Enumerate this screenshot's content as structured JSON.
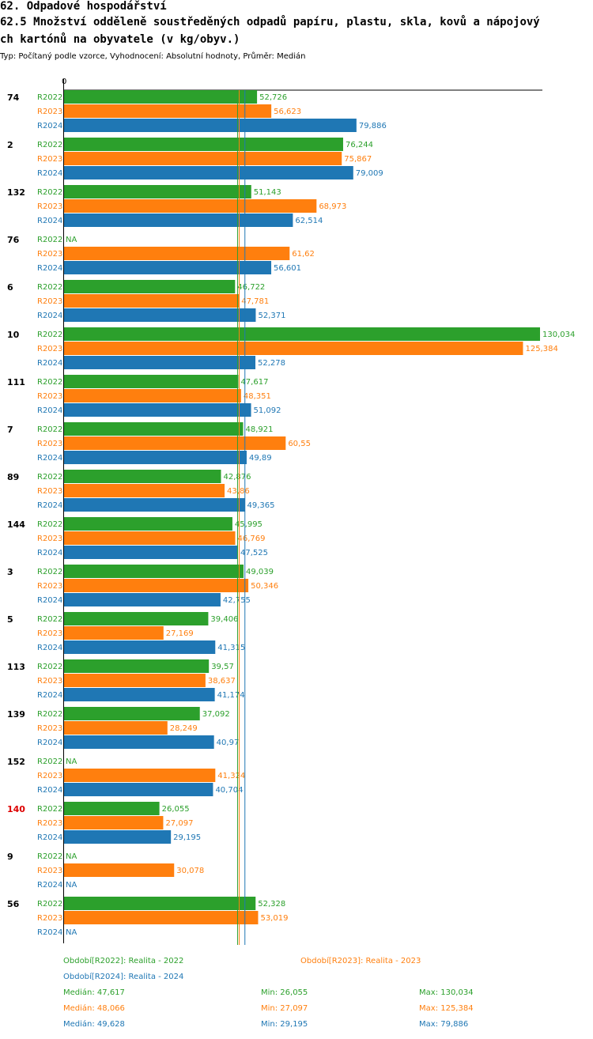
{
  "header": {
    "title1": "62. Odpadové hospodářství",
    "title2": "62.5 Množství odděleně soustředěných odpadů papíru, plastu, skla, kovů a nápojový",
    "title3": "ch kartónů na obyvatele (v kg/obyv.)",
    "subtitle": "Typ: Počítaný podle vzorce, Vyhodnocení: Absolutní hodnoty, Průměr: Medián"
  },
  "colors": {
    "R2022": "#2ca02c",
    "R2023": "#ff7f0e",
    "R2024": "#1f77b4",
    "highlight": "#dd0000",
    "text": "#000000"
  },
  "chart_data": {
    "type": "bar",
    "orientation": "horizontal",
    "title": "62.5 Množství odděleně soustředěných odpadů papíru, plastu, skla, kovů a nápojových kartónů na obyvatele (v kg/obyv.)",
    "xlim": [
      0,
      130.034
    ],
    "x_tick_label": "0",
    "series_names": [
      "R2022",
      "R2023",
      "R2024"
    ],
    "groups": [
      {
        "label": "74",
        "highlight": false,
        "values": [
          52.726,
          56.623,
          79.886
        ],
        "labels": [
          "52,726",
          "56,623",
          "79,886"
        ]
      },
      {
        "label": "2",
        "highlight": false,
        "values": [
          76.244,
          75.867,
          79.009
        ],
        "labels": [
          "76,244",
          "75,867",
          "79,009"
        ]
      },
      {
        "label": "132",
        "highlight": false,
        "values": [
          51.143,
          68.973,
          62.514
        ],
        "labels": [
          "51,143",
          "68,973",
          "62,514"
        ]
      },
      {
        "label": "76",
        "highlight": false,
        "values": [
          null,
          61.62,
          56.601
        ],
        "labels": [
          "NA",
          "61,62",
          "56,601"
        ]
      },
      {
        "label": "6",
        "highlight": false,
        "values": [
          46.722,
          47.781,
          52.371
        ],
        "labels": [
          "46,722",
          "47,781",
          "52,371"
        ]
      },
      {
        "label": "10",
        "highlight": false,
        "values": [
          130.034,
          125.384,
          52.278
        ],
        "labels": [
          "130,034",
          "125,384",
          "52,278"
        ]
      },
      {
        "label": "111",
        "highlight": false,
        "values": [
          47.617,
          48.351,
          51.092
        ],
        "labels": [
          "47,617",
          "48,351",
          "51,092"
        ]
      },
      {
        "label": "7",
        "highlight": false,
        "values": [
          48.921,
          60.55,
          49.89
        ],
        "labels": [
          "48,921",
          "60,55",
          "49,89"
        ]
      },
      {
        "label": "89",
        "highlight": false,
        "values": [
          42.876,
          43.86,
          49.365
        ],
        "labels": [
          "42,876",
          "43,86",
          "49,365"
        ]
      },
      {
        "label": "144",
        "highlight": false,
        "values": [
          45.995,
          46.769,
          47.525
        ],
        "labels": [
          "45,995",
          "46,769",
          "47,525"
        ]
      },
      {
        "label": "3",
        "highlight": false,
        "values": [
          49.039,
          50.346,
          42.755
        ],
        "labels": [
          "49,039",
          "50,346",
          "42,755"
        ]
      },
      {
        "label": "5",
        "highlight": false,
        "values": [
          39.406,
          27.169,
          41.315
        ],
        "labels": [
          "39,406",
          "27,169",
          "41,315"
        ]
      },
      {
        "label": "113",
        "highlight": false,
        "values": [
          39.57,
          38.637,
          41.174
        ],
        "labels": [
          "39,57",
          "38,637",
          "41,174"
        ]
      },
      {
        "label": "139",
        "highlight": false,
        "values": [
          37.092,
          28.249,
          40.97
        ],
        "labels": [
          "37,092",
          "28,249",
          "40,97"
        ]
      },
      {
        "label": "152",
        "highlight": false,
        "values": [
          null,
          41.324,
          40.704
        ],
        "labels": [
          "NA",
          "41,324",
          "40,704"
        ]
      },
      {
        "label": "140",
        "highlight": true,
        "values": [
          26.055,
          27.097,
          29.195
        ],
        "labels": [
          "26,055",
          "27,097",
          "29,195"
        ]
      },
      {
        "label": "9",
        "highlight": false,
        "values": [
          null,
          30.078,
          null
        ],
        "labels": [
          "NA",
          "30,078",
          "NA"
        ]
      },
      {
        "label": "56",
        "highlight": false,
        "values": [
          52.328,
          53.019,
          null
        ],
        "labels": [
          "52,328",
          "53,019",
          "NA"
        ]
      }
    ],
    "medians": [
      47.617,
      48.066,
      49.628
    ]
  },
  "legend": {
    "r2022": "Období[R2022]: Realita - 2022",
    "r2023": "Období[R2023]: Realita - 2023",
    "r2024": "Období[R2024]: Realita - 2024"
  },
  "stats": [
    {
      "median": "Medián: 47,617",
      "min": "Min: 26,055",
      "max": "Max: 130,034"
    },
    {
      "median": "Medián: 48,066",
      "min": "Min: 27,097",
      "max": "Max: 125,384"
    },
    {
      "median": "Medián: 49,628",
      "min": "Min: 29,195",
      "max": "Max: 79,886"
    }
  ]
}
